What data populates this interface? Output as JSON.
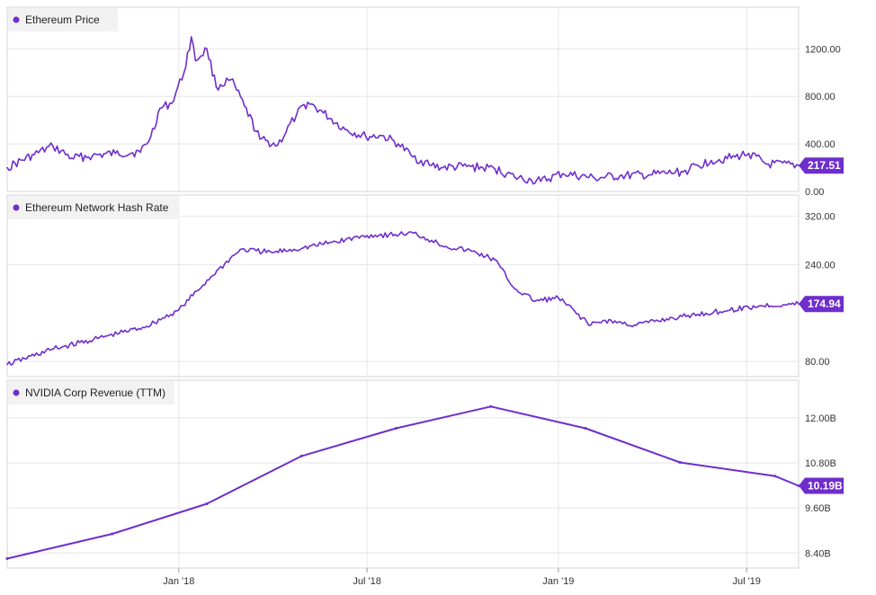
{
  "chart_data": {
    "type": "line",
    "x_ticks": [
      "Jan '18",
      "Jul '18",
      "Jan '19",
      "Jul '19"
    ],
    "x_range": [
      "2017-07-20",
      "2019-08-20"
    ],
    "accent_color": "#6f2ecc",
    "grid": true,
    "legend_placement": "top-left",
    "panels": [
      {
        "series_name": "Ethereum Price",
        "y_ticks": [
          "1200.00",
          "800.00",
          "400.00",
          "0.00"
        ],
        "ylim": [
          0,
          1550
        ],
        "last_value_label": "217.51",
        "x": [
          "2017-07-20",
          "2017-08-15",
          "2017-09-02",
          "2017-09-20",
          "2017-10-10",
          "2017-11-01",
          "2017-11-25",
          "2017-12-05",
          "2017-12-14",
          "2017-12-25",
          "2018-01-06",
          "2018-01-13",
          "2018-01-17",
          "2018-01-28",
          "2018-02-06",
          "2018-02-20",
          "2018-03-05",
          "2018-03-20",
          "2018-04-06",
          "2018-04-24",
          "2018-05-05",
          "2018-05-20",
          "2018-06-10",
          "2018-06-30",
          "2018-07-15",
          "2018-07-31",
          "2018-08-14",
          "2018-09-01",
          "2018-09-12",
          "2018-10-05",
          "2018-11-01",
          "2018-11-20",
          "2018-12-06",
          "2018-12-15",
          "2019-01-05",
          "2019-02-05",
          "2019-03-01",
          "2019-04-01",
          "2019-05-01",
          "2019-05-28",
          "2019-06-20",
          "2019-07-03",
          "2019-07-20",
          "2019-08-20"
        ],
        "y": [
          200,
          310,
          380,
          280,
          300,
          320,
          330,
          460,
          700,
          740,
          1000,
          1300,
          1100,
          1200,
          880,
          940,
          720,
          440,
          390,
          640,
          750,
          660,
          520,
          460,
          470,
          400,
          290,
          220,
          200,
          210,
          190,
          120,
          95,
          85,
          150,
          110,
          130,
          140,
          165,
          260,
          290,
          320,
          230,
          217.51
        ]
      },
      {
        "series_name": "Ethereum Network Hash Rate",
        "y_ticks": [
          "320.00",
          "240.00",
          "80.00"
        ],
        "ylim": [
          55,
          355
        ],
        "last_value_label": "174.94",
        "x": [
          "2017-07-20",
          "2017-09-01",
          "2017-10-15",
          "2017-12-01",
          "2018-01-01",
          "2018-02-01",
          "2018-03-01",
          "2018-04-01",
          "2018-05-01",
          "2018-06-01",
          "2018-07-01",
          "2018-08-01",
          "2018-08-15",
          "2018-09-01",
          "2018-09-15",
          "2018-10-10",
          "2018-11-01",
          "2018-11-20",
          "2018-12-10",
          "2019-01-01",
          "2019-02-01",
          "2019-02-15",
          "2019-03-15",
          "2019-04-15",
          "2019-05-15",
          "2019-06-15",
          "2019-07-15",
          "2019-08-20"
        ],
        "y": [
          75,
          100,
          118,
          138,
          165,
          220,
          265,
          260,
          268,
          278,
          288,
          290,
          292,
          280,
          270,
          262,
          248,
          200,
          180,
          185,
          140,
          148,
          140,
          150,
          158,
          165,
          172,
          174.94
        ]
      },
      {
        "series_name": "NVIDIA Corp Revenue (TTM)",
        "y_ticks": [
          "12.00B",
          "10.80B",
          "9.60B",
          "8.40B"
        ],
        "ylim": [
          8.0,
          13.0
        ],
        "last_value_label": "10.19B",
        "x": [
          "2017-07-20",
          "2017-10-29",
          "2018-01-28",
          "2018-04-29",
          "2018-07-29",
          "2018-10-28",
          "2019-01-27",
          "2019-04-28",
          "2019-07-28",
          "2019-08-20"
        ],
        "y": [
          8.25,
          8.91,
          9.71,
          10.98,
          11.72,
          12.3,
          11.72,
          10.81,
          10.45,
          10.19
        ]
      }
    ]
  }
}
